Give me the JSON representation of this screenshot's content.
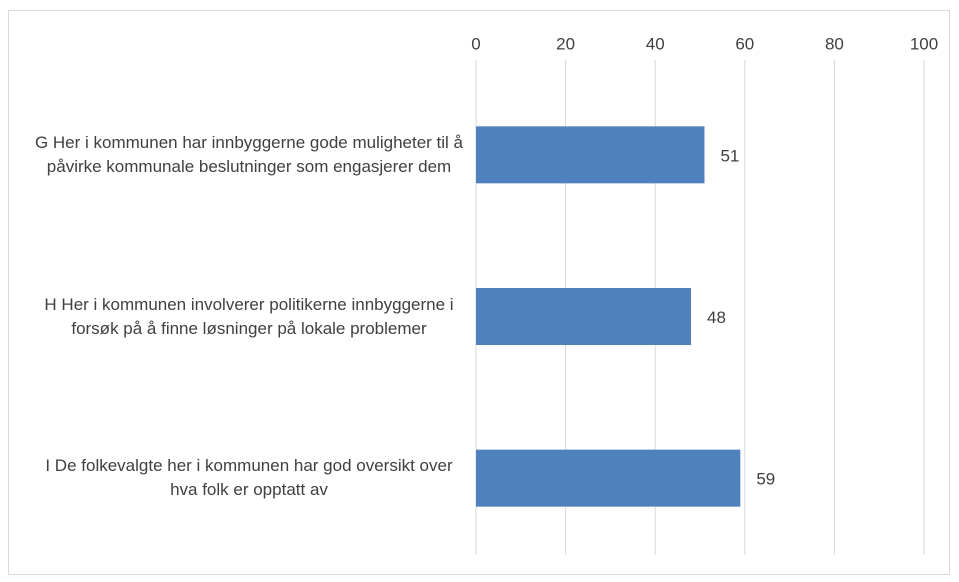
{
  "chart_data": {
    "type": "bar",
    "orientation": "horizontal",
    "categories": [
      "G Her i kommunen har innbyggerne gode muligheter til å påvirke kommunale beslutninger som engasjerer dem",
      "H Her i kommunen involverer politikerne innbyggerne i forsøk på å finne løsninger på lokale problemer",
      "I De folkevalgte her i kommunen har god oversikt over hva folk er opptatt av"
    ],
    "values": [
      51,
      48,
      59
    ],
    "color": "#4f81bd",
    "xlim": [
      0,
      100
    ],
    "xticks": [
      0,
      20,
      40,
      60,
      80,
      100
    ],
    "grid": true
  }
}
